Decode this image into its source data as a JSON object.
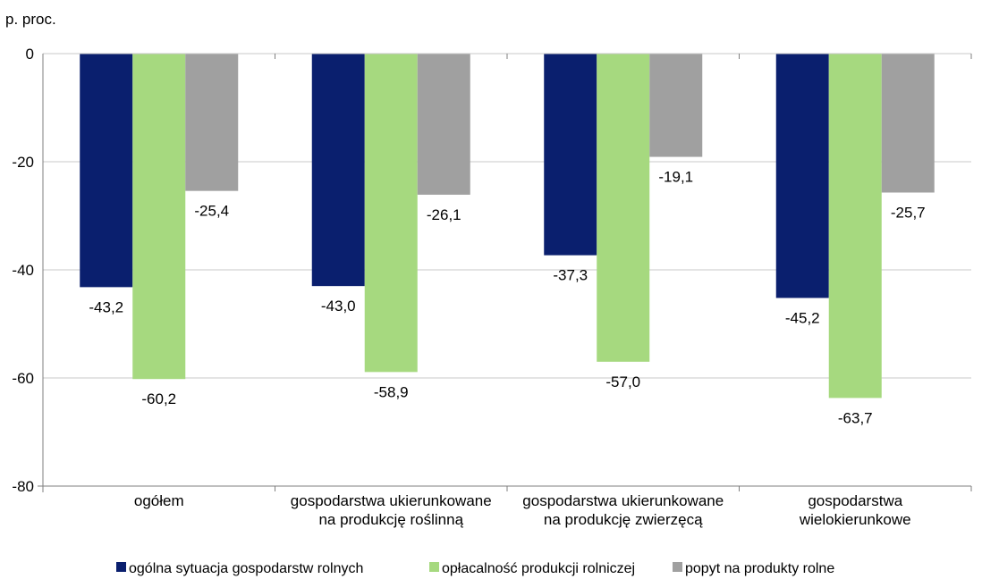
{
  "chart_data": {
    "type": "bar",
    "unit_label": "p. proc.",
    "categories": [
      [
        "ogółem"
      ],
      [
        "gospodarstwa ukierunkowane",
        "na produkcję roślinną"
      ],
      [
        "gospodarstwa ukierunkowane",
        "na produkcję zwierzęcą"
      ],
      [
        "gospodarstwa",
        "wielokierunkowe"
      ]
    ],
    "series": [
      {
        "name": "ogólna sytuacja gospodarstw rolnych",
        "color": "#0a1f6e",
        "values": [
          -43.2,
          -43.0,
          -37.3,
          -45.2
        ],
        "labels": [
          "-43,2",
          "-43,0",
          "-37,3",
          "-45,2"
        ]
      },
      {
        "name": "opłacalność produkcji rolniczej",
        "color": "#a6d97f",
        "values": [
          -60.2,
          -58.9,
          -57.0,
          -63.7
        ],
        "labels": [
          "-60,2",
          "-58,9",
          "-57,0",
          "-63,7"
        ]
      },
      {
        "name": "popyt na produkty rolne",
        "color": "#a0a0a0",
        "values": [
          -25.4,
          -26.1,
          -19.1,
          -25.7
        ],
        "labels": [
          "-25,4",
          "-26,1",
          "-19,1",
          "-25,7"
        ]
      }
    ],
    "ylim": [
      -80,
      0
    ],
    "yticks": [
      0,
      -20,
      -40,
      -60,
      -80
    ],
    "grid": true,
    "legend_position": "bottom"
  }
}
